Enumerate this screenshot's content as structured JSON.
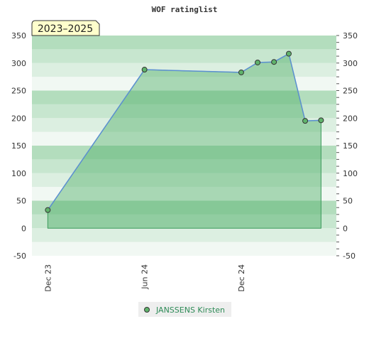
{
  "chart_data": {
    "type": "area",
    "title": "WOF ratinglist",
    "badge": "2023–2025",
    "x_ticks": [
      "Dec 23",
      "Jun 24",
      "Dec 24"
    ],
    "x_range": [
      "2023-11-01",
      "2025-05-30"
    ],
    "ylim": [
      -50,
      350
    ],
    "y_ticks": [
      -50,
      0,
      50,
      100,
      150,
      200,
      250,
      300,
      350
    ],
    "grid": true,
    "series": [
      {
        "name": "JANSSENS Kirsten",
        "color": "#2e8b57",
        "points": [
          {
            "x": "2023-12-01",
            "y": 33
          },
          {
            "x": "2024-06-01",
            "y": 288
          },
          {
            "x": "2024-12-01",
            "y": 283
          },
          {
            "x": "2025-01-01",
            "y": 301
          },
          {
            "x": "2025-02-01",
            "y": 302
          },
          {
            "x": "2025-03-01",
            "y": 317
          },
          {
            "x": "2025-04-01",
            "y": 195
          },
          {
            "x": "2025-05-01",
            "y": 196
          }
        ]
      }
    ],
    "legend": "bottom-center"
  }
}
